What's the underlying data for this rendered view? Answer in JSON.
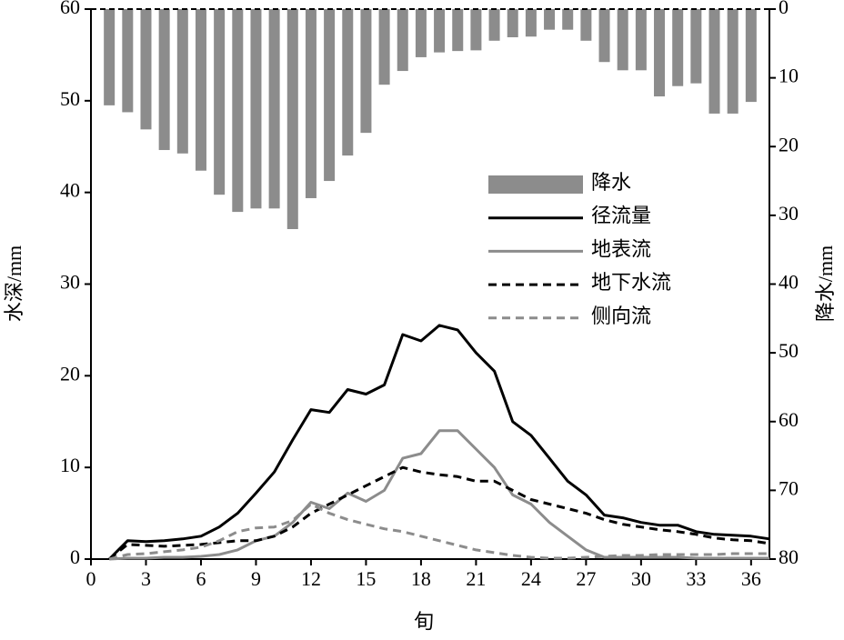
{
  "chart_data": {
    "type": "line",
    "x_label": "旬",
    "y_label": "水深/mm",
    "y2_label": "降水/mm",
    "xlim": [
      0,
      37
    ],
    "xticks": [
      0,
      3,
      6,
      9,
      12,
      15,
      18,
      21,
      24,
      27,
      30,
      33,
      36
    ],
    "ylim": [
      0,
      60
    ],
    "yticks": [
      0,
      10,
      20,
      30,
      40,
      50,
      60
    ],
    "y2lim": [
      80,
      0
    ],
    "y2ticks": [
      0,
      10,
      20,
      30,
      40,
      50,
      60,
      70,
      80
    ],
    "y2_inverted": true,
    "x": [
      1,
      2,
      3,
      4,
      5,
      6,
      7,
      8,
      9,
      10,
      11,
      12,
      13,
      14,
      15,
      16,
      17,
      18,
      19,
      20,
      21,
      22,
      23,
      24,
      25,
      26,
      27,
      28,
      29,
      30,
      31,
      32,
      33,
      34,
      35,
      36,
      37
    ],
    "legend": "upper right",
    "series": [
      {
        "name": "降水",
        "type": "bar",
        "axis": "y2",
        "color": "#8c8c8c",
        "x": [
          1,
          2,
          3,
          4,
          5,
          6,
          7,
          8,
          9,
          10,
          11,
          12,
          13,
          14,
          15,
          16,
          17,
          18,
          19,
          20,
          21,
          22,
          23,
          24,
          25,
          26,
          27,
          28,
          29,
          30,
          31,
          32,
          33,
          34,
          35,
          36
        ],
        "values": [
          14,
          15,
          17.5,
          20.5,
          21,
          23.5,
          27,
          29.5,
          29,
          29,
          32,
          27.5,
          25,
          21.3,
          18,
          11,
          9,
          7,
          6.3,
          6.1,
          6,
          4.6,
          4.1,
          4,
          3,
          3,
          4.6,
          7.7,
          8.9,
          8.9,
          12.7,
          11.2,
          10.8,
          15.2,
          15.2,
          13.5
        ]
      },
      {
        "name": "径流量",
        "color": "#000000",
        "dash": false,
        "values": [
          0,
          2,
          1.9,
          2,
          2.2,
          2.5,
          3.5,
          5,
          7.2,
          9.5,
          13,
          16.3,
          16,
          18.5,
          18,
          19,
          24.5,
          23.8,
          25.5,
          25,
          22.5,
          20.5,
          15,
          13.5,
          11,
          8.5,
          7,
          4.8,
          4.5,
          4,
          3.7,
          3.7,
          3,
          2.7,
          2.6,
          2.5,
          2.2
        ]
      },
      {
        "name": "地表流",
        "color": "#8c8c8c",
        "dash": false,
        "values": [
          0,
          0.1,
          0.1,
          0.2,
          0.2,
          0.3,
          0.5,
          1,
          2,
          2.5,
          4,
          6.2,
          5.5,
          7.2,
          6.3,
          7.5,
          11,
          11.5,
          14,
          14,
          12,
          10,
          7,
          6,
          4,
          2.5,
          1,
          0.2,
          0.2,
          0.2,
          0.2,
          0.2,
          0.1,
          0.1,
          0.1,
          0.1,
          0.1
        ]
      },
      {
        "name": "地下水流",
        "color": "#000000",
        "dash": true,
        "values": [
          0,
          1.6,
          1.5,
          1.4,
          1.5,
          1.6,
          1.8,
          2,
          2,
          2.5,
          3.5,
          5,
          6,
          7,
          8,
          9,
          10,
          9.5,
          9.2,
          9,
          8.5,
          8.5,
          7.5,
          6.5,
          6,
          5.5,
          5,
          4.3,
          3.8,
          3.5,
          3.2,
          3,
          2.7,
          2.3,
          2.1,
          2,
          1.7
        ]
      },
      {
        "name": "侧向流",
        "color": "#8c8c8c",
        "dash": true,
        "values": [
          0,
          0.5,
          0.6,
          0.8,
          1,
          1.3,
          2,
          3,
          3.4,
          3.5,
          4.2,
          6,
          5,
          4.3,
          3.8,
          3.3,
          3,
          2.5,
          2,
          1.5,
          1,
          0.7,
          0.4,
          0.2,
          0.1,
          0.1,
          0.2,
          0.3,
          0.4,
          0.4,
          0.5,
          0.5,
          0.5,
          0.5,
          0.6,
          0.6,
          0.6
        ]
      }
    ]
  }
}
